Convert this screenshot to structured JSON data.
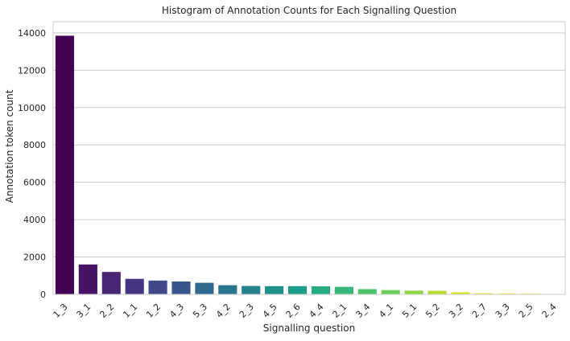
{
  "chart_data": {
    "type": "bar",
    "title": "Histogram of Annotation Counts for Each Signalling Question",
    "xlabel": "Signalling question",
    "ylabel": "Annotation token count",
    "categories": [
      "1_3",
      "3_1",
      "2_2",
      "1_1",
      "1_2",
      "4_3",
      "5_3",
      "4_2",
      "2_3",
      "4_5",
      "2_6",
      "4_4",
      "2_1",
      "3_4",
      "4_1",
      "5_1",
      "5_2",
      "3_2",
      "2_7",
      "3_3",
      "2_5",
      "2_4"
    ],
    "values": [
      13850,
      1600,
      1200,
      830,
      740,
      690,
      620,
      490,
      450,
      440,
      440,
      430,
      400,
      280,
      230,
      200,
      190,
      110,
      60,
      50,
      40,
      15
    ],
    "colors": [
      "#440154",
      "#471365",
      "#482575",
      "#453581",
      "#3f4889",
      "#38588c",
      "#31688e",
      "#2b758e",
      "#26828e",
      "#21918c",
      "#1f9e89",
      "#25ac82",
      "#35b779",
      "#4ec36b",
      "#6ccd5a",
      "#8fd744",
      "#b5de2b",
      "#d8e219",
      "#f0e51c",
      "#fde725",
      "#fde725",
      "#fde725"
    ],
    "ylim": [
      0,
      14600
    ],
    "yticks": [
      0,
      2000,
      4000,
      6000,
      8000,
      10000,
      12000,
      14000
    ],
    "grid": true,
    "legend": "none"
  }
}
